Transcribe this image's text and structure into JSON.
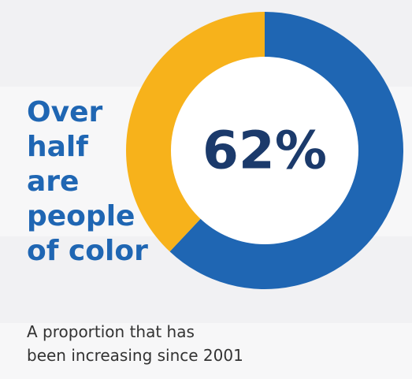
{
  "chart_data": {
    "type": "pie",
    "style": "donut",
    "center_label": "62%",
    "slices": [
      {
        "value": 62,
        "color": "#1f66b3"
      },
      {
        "value": 38,
        "color": "#f7b21b"
      }
    ]
  },
  "headline": {
    "lines": [
      "Over",
      "half",
      "are",
      "people",
      "of color"
    ]
  },
  "caption": {
    "lines": [
      "A proportion that has",
      "been increasing since 2001"
    ]
  },
  "colors": {
    "accent_blue": "#1f66b3",
    "accent_gold": "#f7b21b",
    "center_text": "#1b3a6b",
    "background": "#f7f7f8"
  }
}
